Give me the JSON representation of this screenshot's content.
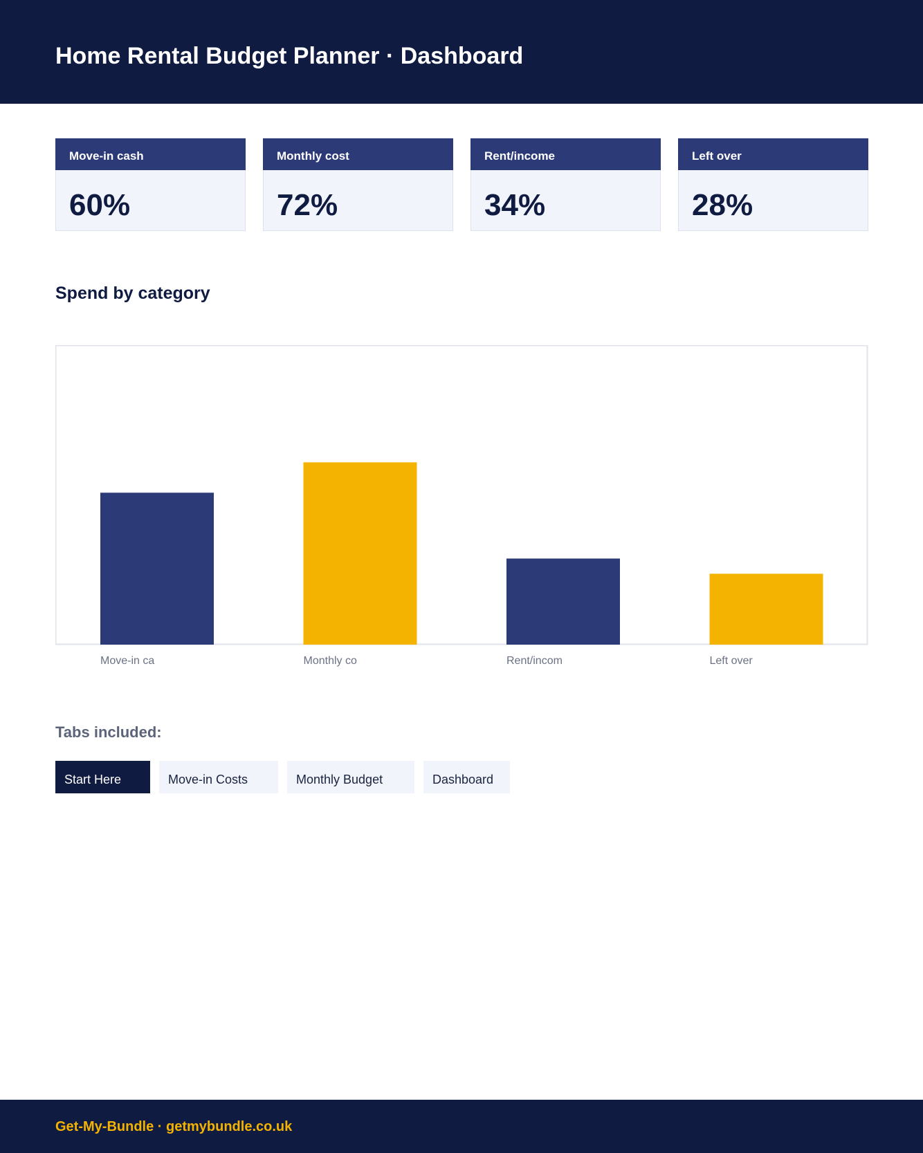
{
  "header": {
    "title": "Home Rental Budget Planner · Dashboard"
  },
  "cards": [
    {
      "label": "Move-in cash",
      "value": "60%"
    },
    {
      "label": "Monthly cost",
      "value": "72%"
    },
    {
      "label": "Rent/income",
      "value": "34%"
    },
    {
      "label": "Left over",
      "value": "28%"
    }
  ],
  "section": {
    "title": "Spend by category"
  },
  "chart_data": {
    "type": "bar",
    "categories": [
      "Move-in ca",
      "Monthly co",
      "Rent/incom",
      "Left over"
    ],
    "values": [
      60,
      72,
      34,
      28
    ],
    "ylim": [
      0,
      118
    ],
    "grid": false,
    "colors": [
      "#2c3a78",
      "#f5b301",
      "#2c3a78",
      "#f5b301"
    ]
  },
  "tabs": {
    "title": "Tabs included:",
    "items": [
      {
        "label": "Start Here",
        "active": true
      },
      {
        "label": "Move-in Costs",
        "active": false
      },
      {
        "label": "Monthly Budget",
        "active": false
      },
      {
        "label": "Dashboard",
        "active": false
      }
    ]
  },
  "footer": {
    "text": "Get-My-Bundle · getmybundle.co.uk"
  },
  "colors": {
    "navy": "#0f1b40",
    "indigo": "#2c3a78",
    "gold": "#f5b301",
    "card_bg": "#f2f4fb"
  }
}
